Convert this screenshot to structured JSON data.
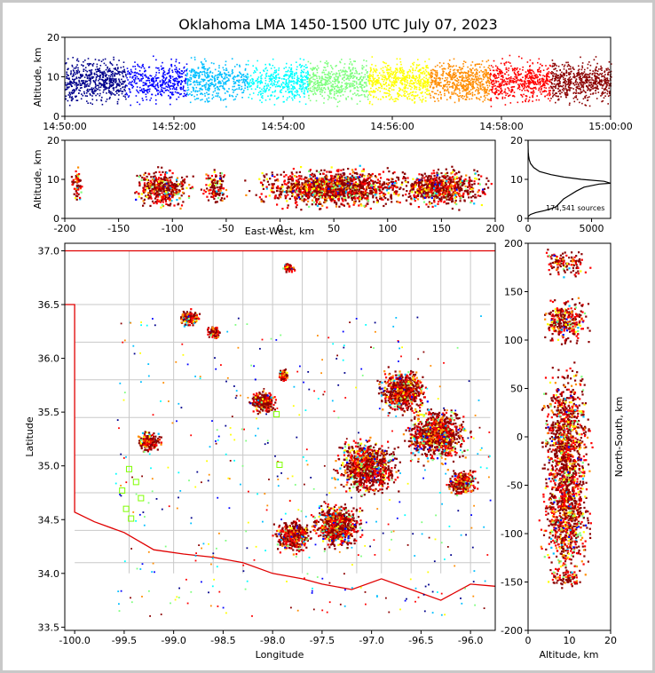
{
  "chart_data": {
    "title": "Oklahoma LMA 1450-1500 UTC July 07, 2023",
    "type": "scatter",
    "colormap": [
      "#00008b",
      "#0000ff",
      "#00bfff",
      "#00ffff",
      "#7fff7f",
      "#ffff00",
      "#ff8c00",
      "#ff0000",
      "#8b0000"
    ],
    "panels": {
      "time_altitude": {
        "type": "scatter",
        "xlabel": "",
        "ylabel": "Altitude, km",
        "xticks": [
          "14:50:00",
          "14:52:00",
          "14:54:00",
          "14:56:00",
          "14:58:00",
          "15:00:00"
        ],
        "xlim_minutes": [
          0,
          10
        ],
        "ylim": [
          0,
          20
        ],
        "yticks": [
          0,
          10,
          20
        ],
        "point_density_by_minute": [
          9,
          6,
          7,
          5,
          8,
          7,
          8,
          9,
          8,
          9
        ],
        "typical_altitude_km": 9
      },
      "east_west_altitude": {
        "type": "scatter",
        "xlabel": "East-West, km",
        "ylabel": "Altitude, km",
        "xlim": [
          -200,
          200
        ],
        "xticks": [
          -200,
          -150,
          -100,
          -50,
          0,
          50,
          100,
          150,
          200
        ],
        "ylim": [
          0,
          20
        ],
        "yticks": [
          0,
          10,
          20
        ],
        "clusters": [
          {
            "x": -190,
            "xspread": 5,
            "z": 9,
            "n": 60
          },
          {
            "x": -110,
            "xspread": 20,
            "z": 8,
            "n": 420
          },
          {
            "x": -60,
            "xspread": 10,
            "z": 8,
            "n": 120
          },
          {
            "x": 50,
            "xspread": 55,
            "z": 8,
            "n": 1400
          },
          {
            "x": 150,
            "xspread": 35,
            "z": 8,
            "n": 700
          }
        ]
      },
      "altitude_histogram": {
        "type": "line",
        "xlim": [
          0,
          6000
        ],
        "xticks": [
          0,
          5000
        ],
        "ylim": [
          0,
          20
        ],
        "yticks": [
          0,
          10,
          20
        ],
        "annotation": "174,541 sources",
        "profile": [
          [
            0,
            0
          ],
          [
            6,
            0.5
          ],
          [
            180,
            1
          ],
          [
            600,
            1.5
          ],
          [
            1300,
            2
          ],
          [
            1800,
            2.5
          ],
          [
            2200,
            3
          ],
          [
            2500,
            4
          ],
          [
            2800,
            5
          ],
          [
            3300,
            6
          ],
          [
            3800,
            7
          ],
          [
            4400,
            8
          ],
          [
            5600,
            8.8
          ],
          [
            6500,
            9
          ],
          [
            6000,
            9.5
          ],
          [
            4200,
            10
          ],
          [
            2800,
            10.6
          ],
          [
            1800,
            11.2
          ],
          [
            900,
            12
          ],
          [
            450,
            13
          ],
          [
            200,
            14
          ],
          [
            90,
            15
          ],
          [
            40,
            16
          ],
          [
            15,
            17
          ],
          [
            5,
            18
          ],
          [
            2,
            19
          ],
          [
            0,
            20
          ]
        ]
      },
      "plan_view": {
        "type": "scatter",
        "xlabel": "Longitude",
        "ylabel": "Latitude",
        "xlim": [
          -100.1,
          -95.75
        ],
        "ylim": [
          33.47,
          37.07
        ],
        "xticks": [
          "-100.0",
          "-99.5",
          "-99.0",
          "-98.5",
          "-98.0",
          "-97.5",
          "-97.0",
          "-96.5",
          "-96.0"
        ],
        "yticks": [
          "33.5",
          "34.0",
          "34.5",
          "35.0",
          "35.5",
          "36.0",
          "36.5",
          "37.0"
        ],
        "clusters": [
          {
            "lon": -98.85,
            "lat": 36.38,
            "r": 0.08,
            "n": 160
          },
          {
            "lon": -98.6,
            "lat": 36.25,
            "r": 0.06,
            "n": 80
          },
          {
            "lon": -98.1,
            "lat": 35.6,
            "r": 0.1,
            "n": 300
          },
          {
            "lon": -97.9,
            "lat": 35.85,
            "r": 0.05,
            "n": 80
          },
          {
            "lon": -99.25,
            "lat": 35.23,
            "r": 0.1,
            "n": 200
          },
          {
            "lon": -97.8,
            "lat": 34.35,
            "r": 0.15,
            "n": 400
          },
          {
            "lon": -97.35,
            "lat": 34.45,
            "r": 0.2,
            "n": 700
          },
          {
            "lon": -97.05,
            "lat": 35.0,
            "r": 0.25,
            "n": 900
          },
          {
            "lon": -96.7,
            "lat": 35.7,
            "r": 0.2,
            "n": 700
          },
          {
            "lon": -96.35,
            "lat": 35.3,
            "r": 0.25,
            "n": 900
          },
          {
            "lon": -96.1,
            "lat": 34.85,
            "r": 0.12,
            "n": 300
          },
          {
            "lon": -97.85,
            "lat": 36.85,
            "r": 0.05,
            "n": 60
          }
        ]
      },
      "north_south_altitude": {
        "type": "scatter",
        "xlabel": "Altitude, km",
        "ylabel": "North-South, km",
        "xlim": [
          0,
          20
        ],
        "xticks": [
          0,
          10,
          20
        ],
        "ylim": [
          -200,
          200
        ],
        "yticks": [
          -200,
          -150,
          -100,
          -50,
          0,
          50,
          100,
          150,
          200
        ],
        "clusters": [
          {
            "y": 180,
            "yspread": 12,
            "n": 120
          },
          {
            "y": 120,
            "yspread": 20,
            "n": 300
          },
          {
            "y": 0,
            "yspread": 60,
            "n": 900
          },
          {
            "y": -80,
            "yspread": 55,
            "n": 800
          },
          {
            "y": -145,
            "yspread": 8,
            "n": 80
          }
        ]
      }
    }
  }
}
